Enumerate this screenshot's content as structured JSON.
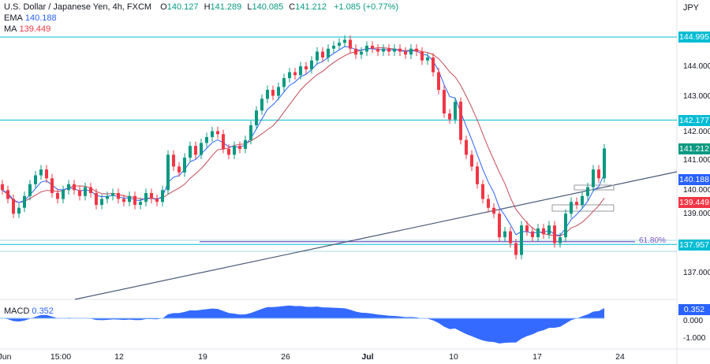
{
  "header": {
    "symbol": "U.S. Dollar / Japanese Yen, 4h, FXCM",
    "o_label": "O",
    "o": "140.127",
    "h_label": "H",
    "h": "141.289",
    "l_label": "L",
    "l": "140.085",
    "c_label": "C",
    "c": "141.212",
    "change": "+1.085 (+0.77%)",
    "currency": "JPY"
  },
  "indicators": {
    "ema_label": "EMA",
    "ema_value": "140.188",
    "ma_label": "MA",
    "ma_value": "139.449",
    "macd_label": "MACD",
    "macd_value": "0.352"
  },
  "colors": {
    "up": "#089981",
    "down": "#f23645",
    "ema": "#2962ff",
    "ma": "#c44a5a",
    "level": "#00bcd4",
    "fib": "#7e57c2",
    "macd": "#2962ff"
  },
  "price_axis": {
    "ticks": [
      "144.000",
      "143.000",
      "142.000",
      "141.000",
      "140.000",
      "139.000",
      "137.000"
    ],
    "tags": [
      {
        "label": "144.995",
        "price": 144.995,
        "color": "#00bcd4"
      },
      {
        "label": "142.177",
        "price": 142.177,
        "color": "#00bcd4"
      },
      {
        "label": "141.212",
        "price": 141.212,
        "color": "#089981"
      },
      {
        "label": "140.188",
        "price": 140.188,
        "color": "#2962ff"
      },
      {
        "label": "139.449",
        "price": 139.449,
        "color": "#f23645"
      },
      {
        "label": "137.957",
        "price": 137.957,
        "color": "#00bcd4"
      }
    ]
  },
  "macd_axis": {
    "ticks": [
      "0.000",
      "-1.000"
    ]
  },
  "fib": {
    "label": "61.80%",
    "price": 138.05
  },
  "time_axis": [
    "Jun",
    "15:00",
    "12",
    "19",
    "26",
    "Jul",
    "10",
    "17",
    "24"
  ],
  "chart_data": {
    "type": "candlestick",
    "title": "U.S. Dollar / Japanese Yen, 4h, FXCM",
    "ylim": [
      136.5,
      145.5
    ],
    "levels": [
      144.995,
      142.177,
      137.957
    ],
    "closes": [
      139.8,
      139.5,
      139.0,
      139.2,
      139.6,
      140.0,
      140.3,
      140.5,
      140.2,
      139.7,
      139.5,
      139.8,
      140.0,
      139.8,
      139.6,
      139.9,
      139.7,
      139.3,
      139.5,
      139.6,
      139.7,
      139.5,
      139.4,
      139.6,
      139.3,
      139.4,
      139.7,
      139.5,
      139.4,
      139.8,
      141.0,
      140.6,
      140.4,
      140.9,
      141.3,
      141.0,
      141.4,
      141.6,
      141.8,
      141.7,
      141.2,
      141.0,
      141.3,
      141.2,
      141.5,
      142.0,
      142.5,
      142.9,
      143.2,
      143.0,
      143.3,
      143.6,
      143.8,
      143.7,
      144.0,
      143.9,
      144.2,
      144.5,
      144.3,
      144.6,
      144.7,
      144.8,
      144.9,
      144.6,
      144.4,
      144.5,
      144.7,
      144.6,
      144.5,
      144.6,
      144.5,
      144.6,
      144.5,
      144.4,
      144.6,
      144.5,
      144.2,
      144.3,
      143.8,
      143.2,
      142.4,
      142.2,
      142.8,
      141.5,
      141.0,
      140.6,
      140.0,
      139.5,
      139.2,
      139.0,
      138.2,
      138.4,
      138.0,
      137.6,
      138.6,
      138.4,
      138.2,
      138.5,
      138.3,
      138.6,
      138.0,
      138.2,
      139.0,
      139.4,
      139.3,
      139.6,
      139.9,
      140.5,
      140.2,
      141.212
    ]
  }
}
